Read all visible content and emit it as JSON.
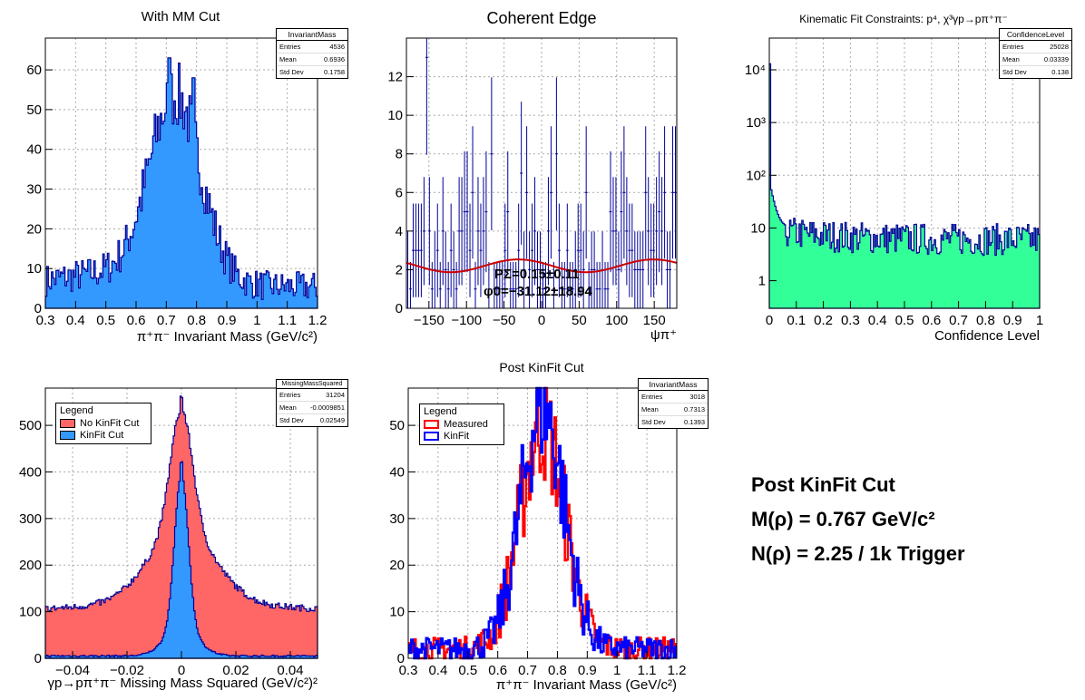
{
  "pads": [
    {
      "title": "With MM Cut",
      "stats": {
        "name": "InvariantMass",
        "rows": [
          [
            "Entries",
            "4536"
          ],
          [
            "Mean",
            "0.6936"
          ],
          [
            "Std Dev",
            "0.1758"
          ]
        ]
      },
      "xlabel": "π⁺π⁻ Invariant Mass (GeV/c²)",
      "xticks": [
        "0.3",
        "0.4",
        "0.5",
        "0.6",
        "0.7",
        "0.8",
        "0.9",
        "1",
        "1.1",
        "1.2"
      ],
      "yticks": [
        "0",
        "10",
        "20",
        "30",
        "40",
        "50",
        "60"
      ]
    },
    {
      "title": "Coherent Edge",
      "xlabel": "ψπ⁺",
      "xticks": [
        "−150",
        "−100",
        "−50",
        "0",
        "50",
        "100",
        "150"
      ],
      "yticks": [
        "0",
        "2",
        "4",
        "6",
        "8",
        "10",
        "12"
      ],
      "fit_text": [
        "PΣ=0.15±0.11",
        "φ0=−31.12±18.94"
      ]
    },
    {
      "title": "Kinematic Fit Constraints: p⁴, χ³γp→pπ⁺π⁻",
      "stats": {
        "name": "ConfidenceLevel",
        "rows": [
          [
            "Entries",
            "25028"
          ],
          [
            "Mean",
            "0.03339"
          ],
          [
            "Std Dev",
            "0.138"
          ]
        ]
      },
      "xlabel": "Confidence Level",
      "xticks": [
        "0",
        "0.1",
        "0.2",
        "0.3",
        "0.4",
        "0.5",
        "0.6",
        "0.7",
        "0.8",
        "0.9",
        "1"
      ],
      "yticks": [
        "1",
        "10",
        "10²",
        "10³",
        "10⁴"
      ]
    },
    {
      "title": "",
      "stats": {
        "name": "MissingMassSquared",
        "rows": [
          [
            "Entries",
            "31204"
          ],
          [
            "Mean",
            "-0.0009851"
          ],
          [
            "Std Dev",
            "0.02549"
          ]
        ]
      },
      "legend": {
        "header": "Legend",
        "items": [
          "No KinFit Cut",
          "KinFit Cut"
        ]
      },
      "xlabel": "γp→pπ⁺π⁻ Missing Mass Squared (GeV/c²)²",
      "xticks": [
        "−0.04",
        "−0.02",
        "0",
        "0.02",
        "0.04"
      ],
      "yticks": [
        "0",
        "100",
        "200",
        "300",
        "400",
        "500"
      ]
    },
    {
      "title": "Post KinFit Cut",
      "stats": {
        "name": "InvariantMass",
        "rows": [
          [
            "Entries",
            "3018"
          ],
          [
            "Mean",
            "0.7313"
          ],
          [
            "Std Dev",
            "0.1393"
          ]
        ]
      },
      "legend": {
        "header": "Legend",
        "items": [
          "Measured",
          "KinFit"
        ]
      },
      "xlabel": "π⁺π⁻ Invariant Mass (GeV/c²)",
      "xticks": [
        "0.3",
        "0.4",
        "0.5",
        "0.6",
        "0.7",
        "0.8",
        "0.9",
        "1",
        "1.1",
        "1.2"
      ],
      "yticks": [
        "0",
        "10",
        "20",
        "30",
        "40",
        "50"
      ]
    }
  ],
  "summary": {
    "line1": "Post KinFit Cut",
    "line2": "M(ρ) = 0.767 GeV/c²",
    "line3": "N(ρ) = 2.25 / 1k Trigger"
  },
  "colors": {
    "azure": "#3399ff",
    "navy": "#000099",
    "pink": "#ff6666",
    "red": "#ff0000",
    "blue": "#0000ff",
    "green": "#33ff99",
    "fit": "#cc0000"
  },
  "chart_data": [
    {
      "type": "bar",
      "title": "With MM Cut",
      "xlabel": "π⁺π⁻ Invariant Mass (GeV/c²)",
      "ylabel": "",
      "xlim": [
        0.3,
        1.2
      ],
      "ylim": [
        0,
        68
      ],
      "grid": true,
      "series": [
        {
          "name": "InvariantMass",
          "shape": "gauss",
          "peak": 0.73,
          "width": 0.085,
          "amp": 46,
          "bkg": 9,
          "noise": 5,
          "spike": [
            0.71,
            63
          ]
        }
      ]
    },
    {
      "type": "scatter",
      "title": "Coherent Edge",
      "xlabel": "ψπ⁺",
      "ylabel": "",
      "xlim": [
        -180,
        180
      ],
      "ylim": [
        0,
        14
      ],
      "grid": true,
      "series": [
        {
          "name": "data",
          "kind": "points with error bars",
          "typical": [
            0,
            1,
            2,
            3,
            4,
            5,
            6
          ],
          "max": 13
        },
        {
          "name": "fit",
          "kind": "cos",
          "base": 2.2,
          "amp": 0.33,
          "period": 180,
          "phase": -31.12
        }
      ]
    },
    {
      "type": "bar",
      "title": "Kinematic Fit Constraints",
      "xlabel": "Confidence Level",
      "ylabel": "",
      "xlim": [
        0,
        1
      ],
      "ylim": [
        0.3,
        40000
      ],
      "yscale": "log",
      "grid": true,
      "series": [
        {
          "name": "ConfidenceLevel",
          "first_bin": 13000,
          "tail_level": 6,
          "noise": 0.35
        }
      ]
    },
    {
      "type": "bar",
      "title": "",
      "xlabel": "γp→pπ⁺π⁻ Missing Mass Squared (GeV/c²)²",
      "ylabel": "",
      "xlim": [
        -0.05,
        0.05
      ],
      "ylim": [
        0,
        580
      ],
      "grid": true,
      "legend": "top-left",
      "series": [
        {
          "name": "No KinFit Cut",
          "color": "#ff6666",
          "bkg": 100,
          "peak": 560,
          "width": 0.004,
          "broad": 0.012
        },
        {
          "name": "KinFit Cut",
          "color": "#3399ff",
          "bkg": 5,
          "peak": 420,
          "width": 0.0025
        }
      ]
    },
    {
      "type": "line",
      "title": "Post KinFit Cut",
      "xlabel": "π⁺π⁻ Invariant Mass (GeV/c²)",
      "ylabel": "",
      "xlim": [
        0.3,
        1.2
      ],
      "ylim": [
        0,
        58
      ],
      "grid": true,
      "legend": "top-left",
      "series": [
        {
          "name": "Measured",
          "color": "#ff0000",
          "peak": 0.75,
          "width": 0.075,
          "amp": 48
        },
        {
          "name": "KinFit",
          "color": "#0000ff",
          "peak": 0.75,
          "width": 0.072,
          "amp": 52
        }
      ]
    }
  ]
}
